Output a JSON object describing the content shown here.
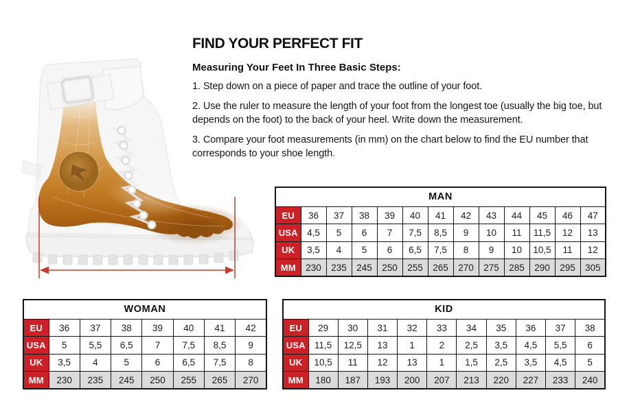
{
  "content": {
    "title": "FIND YOUR PERFECT FIT",
    "subtitle": "Measuring Your Feet In Three Basic Steps:",
    "steps": [
      "1. Step down on a piece of paper and trace the outline of your foot.",
      "2. Use the ruler to measure the length of your foot from the longest toe (usually the big toe, but depends on the foot) to the back of your heel. Write down the measurement.",
      "3. Compare your foot measurements (in mm) on the chart below to find the EU number that corresponds to your shoe length."
    ]
  },
  "figure": {
    "icons": [
      "thermal-foot-boot-illustration",
      "foot-length-measurement-arrow"
    ]
  },
  "colors": {
    "accent_red": "#CB2127",
    "arrow_red": "#C43C2C",
    "shaded_row": "#DBDBDB",
    "table_border": "#151515"
  },
  "tables": {
    "man": {
      "title": "MAN",
      "rows": [
        {
          "label": "EU",
          "values": [
            "36",
            "37",
            "38",
            "39",
            "40",
            "41",
            "42",
            "43",
            "44",
            "45",
            "46",
            "47"
          ]
        },
        {
          "label": "USA",
          "values": [
            "4,5",
            "5",
            "6",
            "7",
            "7,5",
            "8,5",
            "9",
            "10",
            "11",
            "11,5",
            "12",
            "13"
          ]
        },
        {
          "label": "UK",
          "values": [
            "3,5",
            "4",
            "5",
            "6",
            "6,5",
            "7,5",
            "8",
            "9",
            "10",
            "10,5",
            "11",
            "12"
          ]
        },
        {
          "label": "MM",
          "values": [
            "230",
            "235",
            "245",
            "250",
            "255",
            "265",
            "270",
            "275",
            "285",
            "290",
            "295",
            "305"
          ],
          "shaded": true
        }
      ]
    },
    "woman": {
      "title": "WOMAN",
      "rows": [
        {
          "label": "EU",
          "values": [
            "36",
            "37",
            "38",
            "39",
            "40",
            "41",
            "42"
          ]
        },
        {
          "label": "USA",
          "values": [
            "5",
            "5,5",
            "6,5",
            "7",
            "7,5",
            "8,5",
            "9"
          ]
        },
        {
          "label": "UK",
          "values": [
            "3,5",
            "4",
            "5",
            "6",
            "6,5",
            "7,5",
            "8"
          ]
        },
        {
          "label": "MM",
          "values": [
            "230",
            "235",
            "245",
            "250",
            "255",
            "265",
            "270"
          ],
          "shaded": true
        }
      ]
    },
    "kid": {
      "title": "KID",
      "rows": [
        {
          "label": "EU",
          "values": [
            "29",
            "30",
            "31",
            "32",
            "33",
            "34",
            "35",
            "36",
            "37",
            "38"
          ]
        },
        {
          "label": "USA",
          "values": [
            "11,5",
            "12,5",
            "13",
            "1",
            "2",
            "2,5",
            "3,5",
            "4,5",
            "5,5",
            "6"
          ]
        },
        {
          "label": "UK",
          "values": [
            "10,5",
            "11",
            "12",
            "13",
            "1",
            "1,5",
            "2,5",
            "3,5",
            "4,5",
            "5"
          ]
        },
        {
          "label": "MM",
          "values": [
            "180",
            "187",
            "193",
            "200",
            "207",
            "213",
            "220",
            "227",
            "233",
            "240"
          ],
          "shaded": true
        }
      ]
    }
  }
}
